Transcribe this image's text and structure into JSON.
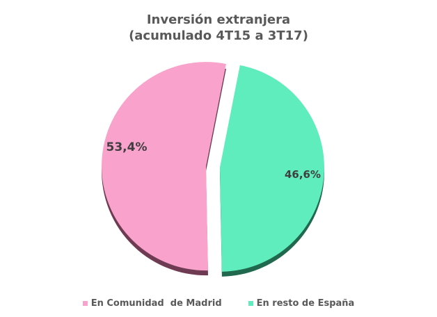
{
  "page": {
    "background": "#FFFFFF"
  },
  "title": {
    "line1": "Inversión extranjera",
    "line2": "(acumulado 4T15 a 3T17)",
    "color": "#595959"
  },
  "chart_data": {
    "type": "pie",
    "title": "Inversión extranjera (acumulado 4T15 a 3T17)",
    "categories": [
      "En Comunidad  de Madrid",
      "En resto de España"
    ],
    "values": [
      53.4,
      46.6
    ],
    "value_labels": [
      "53,4%",
      "46,6%"
    ],
    "colors": [
      "#F9A2CC",
      "#5FEDBD"
    ],
    "side_colors": [
      "#6F3B53",
      "#20684E"
    ],
    "label_color": "#3F3F3F",
    "effect": "3d-exploded",
    "legend_position": "bottom"
  },
  "legend": {
    "items": [
      {
        "label": "En Comunidad  de Madrid",
        "color": "#F9A2CC"
      },
      {
        "label": "En resto de España",
        "color": "#5FEDBD"
      }
    ]
  }
}
